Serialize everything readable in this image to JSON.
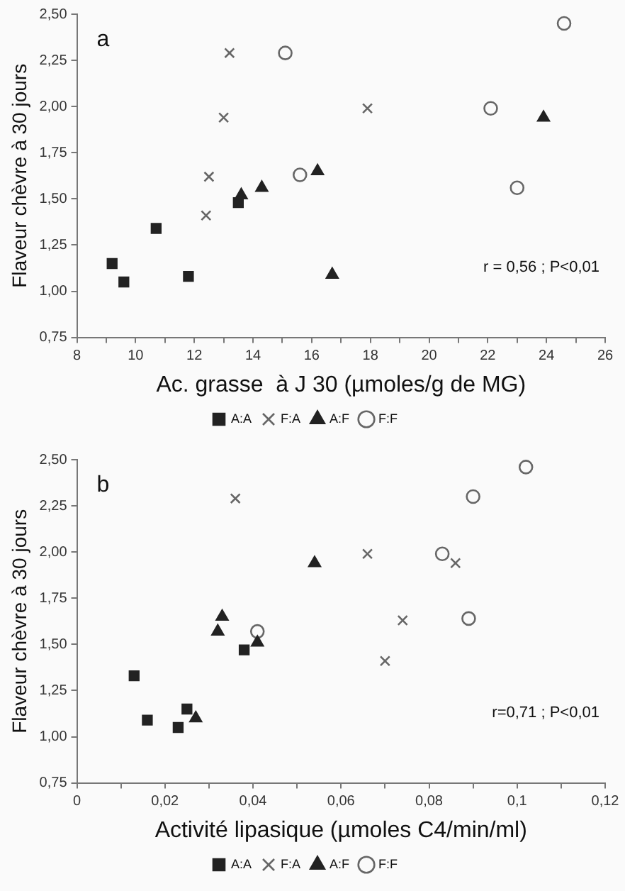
{
  "chart_data": [
    {
      "type": "scatter",
      "xlabel": "Ac. grasse  à J 30 (µmoles/g de MG)",
      "ylabel": "Flaveur chèvre à 30 jours",
      "annotations": [
        "a",
        "r = 0,56 ; P<0,01"
      ],
      "legend": "bottom",
      "grid": false,
      "xlim": [
        8,
        26
      ],
      "xticks": [
        8,
        {
          "value": 9,
          "label": null
        },
        10,
        {
          "value": 11,
          "label": null
        },
        12,
        {
          "value": 13,
          "label": null
        },
        14,
        {
          "value": 15,
          "label": null
        },
        16,
        {
          "value": 17,
          "label": null
        },
        18,
        {
          "value": 19,
          "label": null
        },
        20,
        {
          "value": 21,
          "label": null
        },
        22,
        {
          "value": 23,
          "label": null
        },
        24,
        {
          "value": 25,
          "label": null
        },
        26
      ],
      "ylim": [
        0.75,
        2.5
      ],
      "yticks": [
        {
          "value": 0.75,
          "label": "0,75"
        },
        {
          "value": 1,
          "label": "1,00"
        },
        {
          "value": 1.25,
          "label": "1,25"
        },
        {
          "value": 1.5,
          "label": "1,50"
        },
        {
          "value": 1.75,
          "label": "1,75"
        },
        {
          "value": 2,
          "label": "2,00"
        },
        {
          "value": 2.25,
          "label": "2,25"
        },
        {
          "value": 2.5,
          "label": "2,50"
        }
      ],
      "series": [
        {
          "name": "A:A",
          "color": "#222222",
          "marker": "square",
          "x": [
            9.2,
            9.6,
            10.7,
            11.8,
            13.5
          ],
          "values": [
            1.15,
            1.05,
            1.34,
            1.08,
            1.48
          ]
        },
        {
          "name": "F:A",
          "color": "#666666",
          "marker": "cross",
          "x": [
            13.2,
            13.0,
            12.5,
            12.4,
            17.9
          ],
          "values": [
            2.29,
            1.94,
            1.62,
            1.41,
            1.99
          ]
        },
        {
          "name": "A:F",
          "color": "#222222",
          "marker": "triangle",
          "x": [
            13.6,
            14.3,
            16.2,
            16.7,
            23.9
          ],
          "values": [
            1.52,
            1.56,
            1.65,
            1.09,
            1.94
          ]
        },
        {
          "name": "F:F",
          "color": "#666666",
          "marker": "circle",
          "x": [
            15.1,
            15.6,
            22.1,
            23.0,
            24.6
          ],
          "values": [
            2.29,
            1.63,
            1.99,
            1.56,
            2.45
          ]
        }
      ]
    },
    {
      "type": "scatter",
      "xlabel": "Activité lipasique (µmoles C4/min/ml)",
      "ylabel": "Flaveur chèvre à 30 jours",
      "annotations": [
        "b",
        "r=0,71 ; P<0,01"
      ],
      "legend": "bottom",
      "grid": false,
      "xlim": [
        0,
        0.12
      ],
      "xticks": [
        0,
        {
          "value": 0.01,
          "label": null
        },
        {
          "value": 0.02,
          "label": "0,02"
        },
        {
          "value": 0.03,
          "label": null
        },
        {
          "value": 0.04,
          "label": "0,04"
        },
        {
          "value": 0.05,
          "label": null
        },
        {
          "value": 0.06,
          "label": "0,06"
        },
        {
          "value": 0.07,
          "label": null
        },
        {
          "value": 0.08,
          "label": "0,08"
        },
        {
          "value": 0.09,
          "label": null
        },
        {
          "value": 0.1,
          "label": "0,1"
        },
        {
          "value": 0.11,
          "label": null
        },
        {
          "value": 0.12,
          "label": "0,12"
        }
      ],
      "ylim": [
        0.75,
        2.5
      ],
      "yticks": [
        {
          "value": 0.75,
          "label": "0,75"
        },
        {
          "value": 1,
          "label": "1,00"
        },
        {
          "value": 1.25,
          "label": "1,25"
        },
        {
          "value": 1.5,
          "label": "1,50"
        },
        {
          "value": 1.75,
          "label": "1,75"
        },
        {
          "value": 2,
          "label": "2,00"
        },
        {
          "value": 2.25,
          "label": "2,25"
        },
        {
          "value": 2.5,
          "label": "2,50"
        }
      ],
      "series": [
        {
          "name": "A:A",
          "color": "#222222",
          "marker": "square",
          "x": [
            0.013,
            0.038,
            0.016,
            0.023,
            0.025
          ],
          "values": [
            1.33,
            1.47,
            1.09,
            1.05,
            1.15
          ]
        },
        {
          "name": "F:A",
          "color": "#666666",
          "marker": "cross",
          "x": [
            0.036,
            0.066,
            0.086,
            0.074,
            0.07
          ],
          "values": [
            2.29,
            1.99,
            1.94,
            1.63,
            1.41
          ]
        },
        {
          "name": "A:F",
          "color": "#222222",
          "marker": "triangle",
          "x": [
            0.054,
            0.033,
            0.032,
            0.041,
            0.027
          ],
          "values": [
            1.94,
            1.65,
            1.57,
            1.51,
            1.1
          ]
        },
        {
          "name": "F:F",
          "color": "#666666",
          "marker": "circle",
          "x": [
            0.102,
            0.09,
            0.083,
            0.089,
            0.041
          ],
          "values": [
            2.46,
            2.3,
            1.99,
            1.64,
            1.57
          ]
        }
      ]
    }
  ]
}
